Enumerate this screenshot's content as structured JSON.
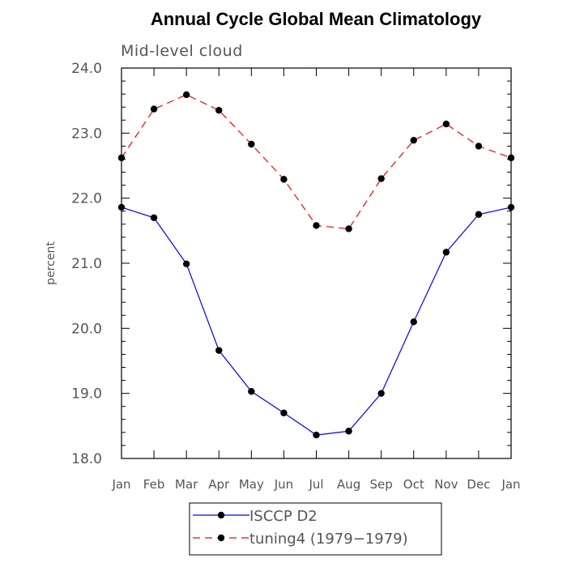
{
  "chart_data": {
    "type": "line",
    "title": "Annual Cycle Global Mean Climatology",
    "subtitle": "Mid-level cloud",
    "ylabel": "percent",
    "xlabel": "",
    "ylim": [
      18.0,
      24.0
    ],
    "yticks": [
      "18.0",
      "19.0",
      "20.0",
      "21.0",
      "22.0",
      "23.0",
      "24.0"
    ],
    "categories": [
      "Jan",
      "Feb",
      "Mar",
      "Apr",
      "May",
      "Jun",
      "Jul",
      "Aug",
      "Sep",
      "Oct",
      "Nov",
      "Dec",
      "Jan"
    ],
    "series": [
      {
        "name": "ISCCP D2",
        "color": "#0000ff",
        "style": "solid",
        "values": [
          21.86,
          21.7,
          20.99,
          19.66,
          19.03,
          18.7,
          18.36,
          18.42,
          19.0,
          20.1,
          21.17,
          21.75,
          21.86
        ]
      },
      {
        "name": "tuning4 (1979−1979)",
        "color": "#ff0000",
        "style": "dashed",
        "values": [
          22.62,
          23.37,
          23.59,
          23.35,
          22.83,
          22.29,
          21.58,
          21.53,
          22.3,
          22.89,
          23.14,
          22.8,
          22.62
        ]
      }
    ],
    "marker_color": "#000000",
    "legend_position": "bottom"
  }
}
